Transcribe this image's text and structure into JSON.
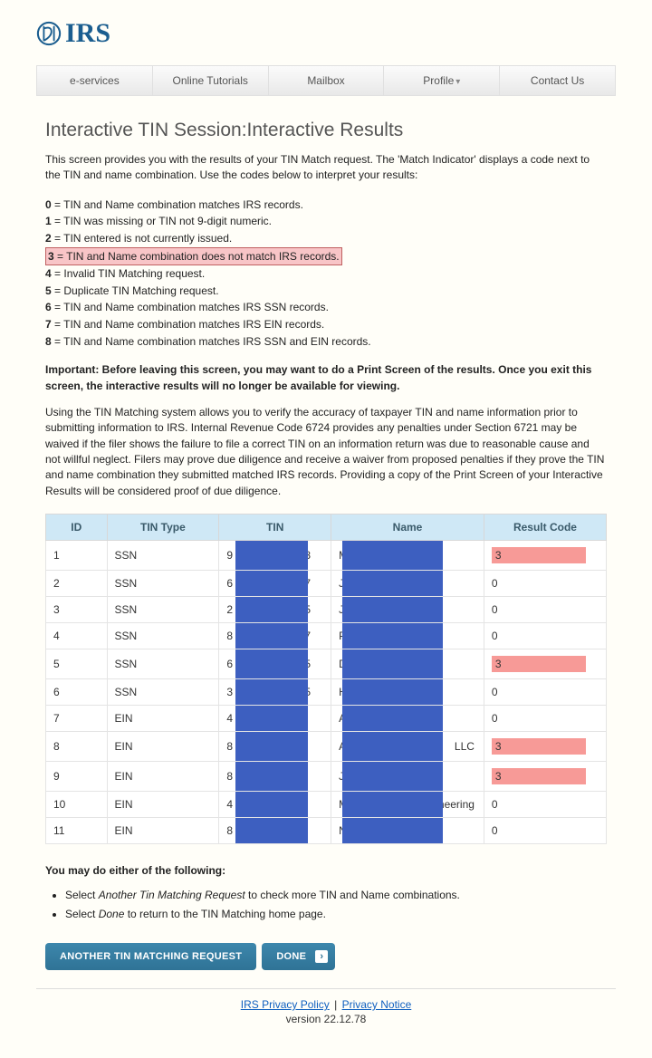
{
  "logo_text": "IRS",
  "nav": {
    "eservices": "e-services",
    "tutorials": "Online Tutorials",
    "mailbox": "Mailbox",
    "profile": "Profile",
    "contact": "Contact Us"
  },
  "title": "Interactive TIN Session:Interactive Results",
  "intro": "This screen provides you with the results of your TIN Match request. The 'Match Indicator' displays a code next to the TIN and name combination. Use the codes below to interpret your results:",
  "codes": [
    {
      "n": "0",
      "t": " = TIN and Name combination matches IRS records.",
      "hl": false
    },
    {
      "n": "1",
      "t": " = TIN was missing or TIN not 9-digit numeric.",
      "hl": false
    },
    {
      "n": "2",
      "t": " = TIN entered is not currently issued.",
      "hl": false
    },
    {
      "n": "3",
      "t": " = TIN and Name combination does not match IRS records.",
      "hl": true
    },
    {
      "n": "4",
      "t": " = Invalid TIN Matching request.",
      "hl": false
    },
    {
      "n": "5",
      "t": " = Duplicate TIN Matching request.",
      "hl": false
    },
    {
      "n": "6",
      "t": " = TIN and Name combination matches IRS SSN records.",
      "hl": false
    },
    {
      "n": "7",
      "t": " = TIN and Name combination matches IRS EIN records.",
      "hl": false
    },
    {
      "n": "8",
      "t": " = TIN and Name combination matches IRS SSN and EIN records.",
      "hl": false
    }
  ],
  "important_lead": "Important: ",
  "important_body": "Before leaving this screen, you may want to do a Print Screen of the results. Once you exit this screen, the interactive results will no longer be available for viewing.",
  "paragraph": "Using the TIN Matching system allows you to verify the accuracy of taxpayer TIN and name information prior to submitting information to IRS. Internal Revenue Code 6724 provides any penalties under Section 6721 may be waived if the filer shows the failure to file a correct TIN on an information return was due to reasonable cause and not willful neglect. Filers may prove due diligence and receive a waiver from proposed penalties if they prove the TIN and name combination they submitted matched IRS records. Providing a copy of the Print Screen of your Interactive Results will be considered proof of due diligence.",
  "table": {
    "headers": {
      "id": "ID",
      "type": "TIN Type",
      "tin": "TIN",
      "name": "Name",
      "result": "Result Code"
    },
    "rows": [
      {
        "id": "1",
        "type": "SSN",
        "tin_pre": "9",
        "tin_suf": "8",
        "name_pre": "M",
        "name_suf": "",
        "result": "3",
        "hl": true
      },
      {
        "id": "2",
        "type": "SSN",
        "tin_pre": "6",
        "tin_suf": "7",
        "name_pre": "J",
        "name_suf": "",
        "result": "0",
        "hl": false
      },
      {
        "id": "3",
        "type": "SSN",
        "tin_pre": "2",
        "tin_suf": "5",
        "name_pre": "J",
        "name_suf": "",
        "result": "0",
        "hl": false
      },
      {
        "id": "4",
        "type": "SSN",
        "tin_pre": "8",
        "tin_suf": "7",
        "name_pre": "P",
        "name_suf": "",
        "result": "0",
        "hl": false
      },
      {
        "id": "5",
        "type": "SSN",
        "tin_pre": "6",
        "tin_suf": "5",
        "name_pre": "D",
        "name_suf": "",
        "result": "3",
        "hl": true
      },
      {
        "id": "6",
        "type": "SSN",
        "tin_pre": "3",
        "tin_suf": "5",
        "name_pre": "H",
        "name_suf": "",
        "result": "0",
        "hl": false
      },
      {
        "id": "7",
        "type": "EIN",
        "tin_pre": "4",
        "tin_suf": "",
        "name_pre": "A",
        "name_suf": "",
        "result": "0",
        "hl": false
      },
      {
        "id": "8",
        "type": "EIN",
        "tin_pre": "8",
        "tin_suf": "",
        "name_pre": "A",
        "name_suf": "LLC",
        "result": "3",
        "hl": true
      },
      {
        "id": "9",
        "type": "EIN",
        "tin_pre": "8",
        "tin_suf": "",
        "name_pre": "J",
        "name_suf": "",
        "result": "3",
        "hl": true
      },
      {
        "id": "10",
        "type": "EIN",
        "tin_pre": "4",
        "tin_suf": "",
        "name_pre": "M",
        "name_suf": "neering",
        "result": "0",
        "hl": false
      },
      {
        "id": "11",
        "type": "EIN",
        "tin_pre": "8",
        "tin_suf": "",
        "name_pre": "N",
        "name_suf": "",
        "result": "0",
        "hl": false
      }
    ]
  },
  "options_header": "You may do either of the following:",
  "options": [
    {
      "pre": "Select ",
      "em": "Another Tin Matching Request",
      "post": " to check more TIN and Name combinations."
    },
    {
      "pre": "Select ",
      "em": "Done",
      "post": " to return to the TIN Matching home page."
    }
  ],
  "buttons": {
    "another": "ANOTHER TIN MATCHING REQUEST",
    "done": "DONE"
  },
  "footer": {
    "link1": "IRS Privacy Policy",
    "link2": "Privacy Notice",
    "version": "version 22.12.78"
  }
}
